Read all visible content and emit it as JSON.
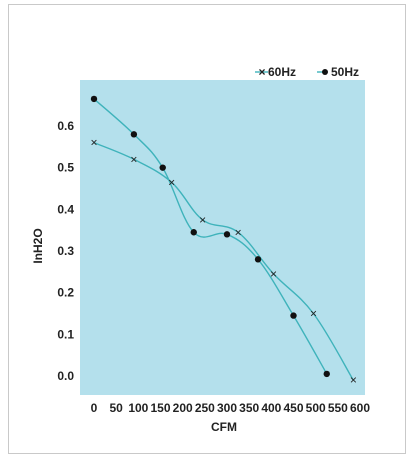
{
  "chart_data": {
    "type": "line",
    "xlabel": "CFM",
    "ylabel": "InH2O",
    "xlim": [
      0,
      600
    ],
    "ylim": [
      -0.05,
      0.7
    ],
    "x_ticks": [
      0,
      50,
      100,
      150,
      200,
      250,
      300,
      350,
      400,
      450,
      500,
      550,
      600
    ],
    "x_tick_labels": [
      "0",
      "50",
      "100",
      "150",
      "200",
      "250",
      "300",
      "350",
      "400",
      "450",
      "500",
      "550",
      "600"
    ],
    "y_ticks": [
      0.0,
      0.1,
      0.2,
      0.3,
      0.4,
      0.5,
      0.6
    ],
    "y_tick_labels": [
      "0.0",
      "0.1",
      "0.2",
      "0.3",
      "0.4",
      "0.5",
      "0.6"
    ],
    "grid": false,
    "legend_position": "top-right",
    "background_color": "#b4e0ec",
    "line_color": "#3fb3bb",
    "series": [
      {
        "name": "60Hz",
        "marker": "x",
        "x": [
          0,
          90,
          175,
          245,
          325,
          405,
          495,
          585
        ],
        "y": [
          0.56,
          0.52,
          0.465,
          0.375,
          0.345,
          0.245,
          0.15,
          -0.01
        ]
      },
      {
        "name": "50Hz",
        "marker": "dot",
        "x": [
          0,
          90,
          155,
          225,
          300,
          370,
          450,
          525
        ],
        "y": [
          0.665,
          0.58,
          0.5,
          0.345,
          0.34,
          0.28,
          0.145,
          0.005
        ]
      }
    ]
  }
}
